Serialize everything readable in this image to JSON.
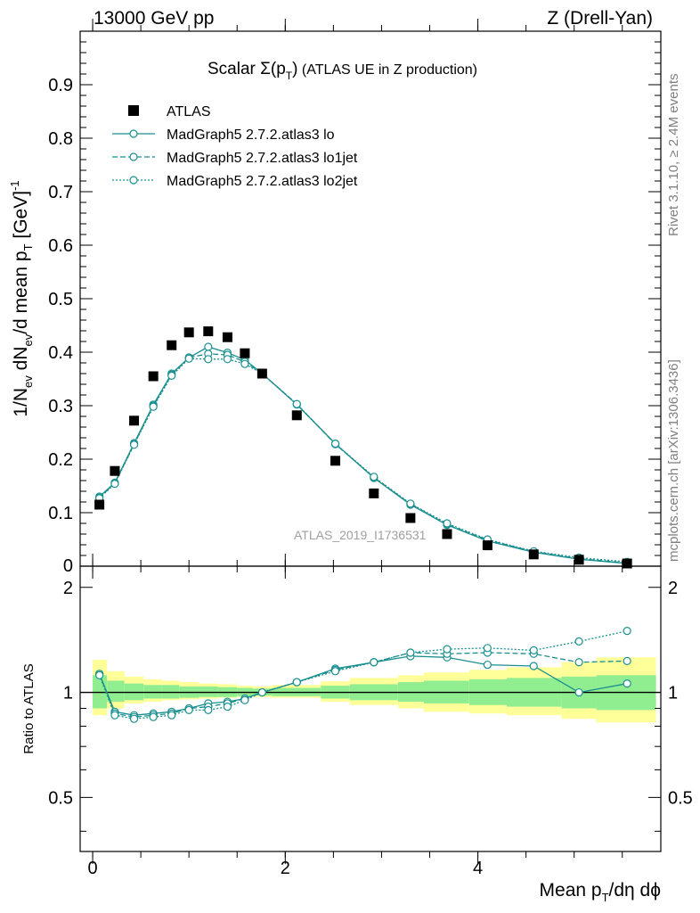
{
  "header": {
    "left": "13000 GeV pp",
    "right": "Z (Drell-Yan)"
  },
  "title": {
    "main": "Scalar Σ(p",
    "sub": "T",
    "close": ")",
    "rest": " (ATLAS UE in Z production)"
  },
  "watermark": "ATLAS_2019_I1736531",
  "side_labels": {
    "rivet": "Rivet 3.1.10, ≥ 2.4M events",
    "mcplots": "mcplots.cern.ch [arXiv:1306.3436]"
  },
  "axes": {
    "ylabel_main": {
      "a": "1/N",
      "a_sub": "ev",
      "b": " dN",
      "b_sub": "ev",
      "c": "/d mean p",
      "c_sub": "T",
      "d": " [GeV]",
      "d_sup": "-1"
    },
    "ylabel_ratio": "Ratio to ATLAS",
    "xlabel": {
      "a": "Mean p",
      "a_sub": "T",
      "b": "/dη dϕ"
    }
  },
  "colors": {
    "data": "#000000",
    "mc": "#1a8f8f",
    "band_inner": "#90ee90",
    "band_outer": "#ffff99"
  },
  "chart_data": {
    "type": "line",
    "xlim": [
      -0.13,
      5.9
    ],
    "ylim_main": [
      0,
      1.0
    ],
    "ylim_ratio": [
      0.35,
      2.3
    ],
    "xticks_major": [
      0,
      2,
      4
    ],
    "xtick_labels": [
      "0",
      "2",
      "4"
    ],
    "yticks_main": [
      0.1,
      0.2,
      0.3,
      0.4,
      0.5,
      0.6,
      0.7,
      0.8,
      0.9
    ],
    "ytick_labels_main": [
      "0.1",
      "0.2",
      "0.3",
      "0.4",
      "0.5",
      "0.6",
      "0.7",
      "0.8",
      "0.9"
    ],
    "ylabel_zero_main": "0",
    "yticks_ratio": [
      0.5,
      1,
      2
    ],
    "ytick_labels_ratio": [
      "0.5",
      "1",
      "2"
    ],
    "x": [
      0.07,
      0.23,
      0.43,
      0.63,
      0.82,
      1.0,
      1.2,
      1.4,
      1.58,
      1.76,
      2.12,
      2.52,
      2.92,
      3.3,
      3.68,
      4.1,
      4.58,
      5.05,
      5.55
    ],
    "atlas": [
      0.115,
      0.178,
      0.272,
      0.355,
      0.413,
      0.437,
      0.439,
      0.428,
      0.398,
      0.36,
      0.282,
      0.197,
      0.136,
      0.09,
      0.06,
      0.039,
      0.022,
      0.012,
      0.005
    ],
    "bins": [
      0.0,
      0.15,
      0.33,
      0.53,
      0.72,
      0.9,
      1.1,
      1.3,
      1.5,
      1.66,
      1.86,
      2.37,
      2.67,
      3.17,
      3.44,
      3.91,
      4.3,
      4.87,
      5.23,
      5.85
    ],
    "band_inner": [
      [
        0.9,
        1.12
      ],
      [
        0.94,
        1.08
      ],
      [
        0.95,
        1.06
      ],
      [
        0.96,
        1.05
      ],
      [
        0.96,
        1.05
      ],
      [
        0.965,
        1.04
      ],
      [
        0.97,
        1.04
      ],
      [
        0.97,
        1.035
      ],
      [
        0.975,
        1.03
      ],
      [
        0.98,
        1.025
      ],
      [
        0.975,
        1.03
      ],
      [
        0.96,
        1.045
      ],
      [
        0.95,
        1.055
      ],
      [
        0.94,
        1.07
      ],
      [
        0.93,
        1.08
      ],
      [
        0.92,
        1.09
      ],
      [
        0.91,
        1.1
      ],
      [
        0.9,
        1.11
      ],
      [
        0.89,
        1.12
      ]
    ],
    "band_outer": [
      [
        0.86,
        1.24
      ],
      [
        0.9,
        1.15
      ],
      [
        0.93,
        1.11
      ],
      [
        0.94,
        1.09
      ],
      [
        0.95,
        1.08
      ],
      [
        0.955,
        1.07
      ],
      [
        0.96,
        1.06
      ],
      [
        0.965,
        1.055
      ],
      [
        0.97,
        1.045
      ],
      [
        0.97,
        1.04
      ],
      [
        0.965,
        1.05
      ],
      [
        0.94,
        1.075
      ],
      [
        0.92,
        1.1
      ],
      [
        0.9,
        1.12
      ],
      [
        0.88,
        1.14
      ],
      [
        0.87,
        1.16
      ],
      [
        0.86,
        1.18
      ],
      [
        0.84,
        1.22
      ],
      [
        0.82,
        1.26
      ]
    ],
    "series": [
      {
        "name": "MadGraph5 2.7.2.atlas3 lo",
        "style": "solid",
        "values": [
          0.13,
          0.156,
          0.23,
          0.302,
          0.36,
          0.39,
          0.41,
          0.399,
          0.386,
          0.36,
          0.302,
          0.229,
          0.165,
          0.115,
          0.077,
          0.047,
          0.026,
          0.013,
          0.005
        ],
        "ratio": [
          1.13,
          0.88,
          0.86,
          0.87,
          0.88,
          0.9,
          0.93,
          0.94,
          0.96,
          1.0,
          1.07,
          1.17,
          1.22,
          1.27,
          1.26,
          1.2,
          1.19,
          1.0,
          1.06
        ]
      },
      {
        "name": "MadGraph5 2.7.2.atlas3 lo1jet",
        "style": "dashed",
        "values": [
          0.128,
          0.155,
          0.228,
          0.3,
          0.358,
          0.39,
          0.397,
          0.395,
          0.382,
          0.36,
          0.303,
          0.228,
          0.166,
          0.116,
          0.078,
          0.049,
          0.027,
          0.014,
          0.006
        ],
        "ratio": [
          1.13,
          0.87,
          0.85,
          0.86,
          0.87,
          0.9,
          0.91,
          0.93,
          0.96,
          1.0,
          1.07,
          1.16,
          1.22,
          1.3,
          1.29,
          1.3,
          1.29,
          1.22,
          1.23
        ]
      },
      {
        "name": "MadGraph5 2.7.2.atlas3 lo2jet",
        "style": "dotted",
        "values": [
          0.127,
          0.154,
          0.227,
          0.298,
          0.356,
          0.388,
          0.387,
          0.387,
          0.378,
          0.36,
          0.303,
          0.229,
          0.167,
          0.117,
          0.08,
          0.05,
          0.028,
          0.016,
          0.008
        ],
        "ratio": [
          1.12,
          0.86,
          0.84,
          0.85,
          0.86,
          0.89,
          0.89,
          0.91,
          0.95,
          1.0,
          1.07,
          1.15,
          1.22,
          1.3,
          1.33,
          1.34,
          1.32,
          1.4,
          1.5
        ]
      }
    ],
    "legend": [
      {
        "label": "ATLAS",
        "kind": "data"
      },
      {
        "label": "MadGraph5 2.7.2.atlas3 lo",
        "kind": "solid"
      },
      {
        "label": "MadGraph5 2.7.2.atlas3 lo1jet",
        "kind": "dashed"
      },
      {
        "label": "MadGraph5 2.7.2.atlas3 lo2jet",
        "kind": "dotted"
      }
    ]
  }
}
